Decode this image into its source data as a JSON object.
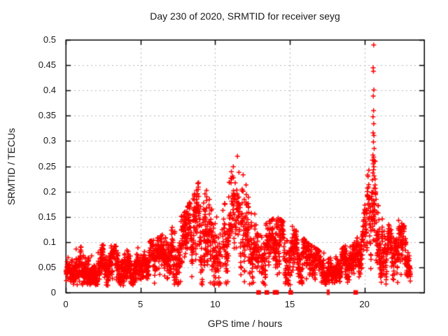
{
  "title": "Day 230 of 2020, SRMTID for receiver seyg",
  "chart_data": {
    "type": "scatter",
    "title": "Day 230 of 2020, SRMTID for receiver seyg",
    "xlabel": "GPS time / hours",
    "ylabel": "SRMTID / TECUs",
    "xlim": [
      0,
      24
    ],
    "ylim": [
      0,
      0.5
    ],
    "xtick_labels": [
      "0",
      "5",
      "10",
      "15",
      "20"
    ],
    "xtick_values": [
      0,
      5,
      10,
      15,
      20
    ],
    "ytick_labels": [
      "0",
      "0.05",
      "0.1",
      "0.15",
      "0.2",
      "0.25",
      "0.3",
      "0.35",
      "0.4",
      "0.45",
      "0.5"
    ],
    "ytick_values": [
      0,
      0.05,
      0.1,
      0.15,
      0.2,
      0.25,
      0.3,
      0.35,
      0.4,
      0.45,
      0.5
    ],
    "grid": "dotted-major",
    "legend": false,
    "marker": {
      "shape": "plus",
      "size": 7,
      "color": "#ff0000"
    },
    "colors": {
      "marker": "#ff0000",
      "grid": "#b4b4b4",
      "axis": "#000000",
      "text": "#1a1a1a",
      "background": "#ffffff"
    },
    "sampling": {
      "seed": 230,
      "epoch_step_hours": 0.025,
      "start_hour": 0.02,
      "end_hour": 23.08,
      "min_points_per_epoch": 2,
      "max_points_per_epoch": 5,
      "floor_value": 0.014,
      "noise_ar": 0.5
    },
    "ripple": {
      "amp1": 0.2,
      "period1": 0.8,
      "phase1": 1.2,
      "amp2": 0.12,
      "period2": 2.7,
      "phase2": 0.5
    },
    "envelope_keypoints": [
      [
        0.0,
        0.042,
        0.013
      ],
      [
        0.5,
        0.04,
        0.012
      ],
      [
        1.0,
        0.05,
        0.016
      ],
      [
        1.5,
        0.046,
        0.014
      ],
      [
        2.0,
        0.051,
        0.015
      ],
      [
        2.5,
        0.056,
        0.016
      ],
      [
        3.0,
        0.052,
        0.015
      ],
      [
        3.5,
        0.057,
        0.016
      ],
      [
        4.0,
        0.05,
        0.014
      ],
      [
        4.5,
        0.047,
        0.013
      ],
      [
        5.0,
        0.052,
        0.015
      ],
      [
        5.5,
        0.058,
        0.016
      ],
      [
        6.0,
        0.066,
        0.018
      ],
      [
        6.5,
        0.072,
        0.02
      ],
      [
        7.0,
        0.078,
        0.022
      ],
      [
        7.5,
        0.088,
        0.026
      ],
      [
        8.0,
        0.1,
        0.03
      ],
      [
        8.5,
        0.112,
        0.033
      ],
      [
        9.0,
        0.128,
        0.04
      ],
      [
        9.4,
        0.132,
        0.038
      ],
      [
        9.8,
        0.11,
        0.036
      ],
      [
        10.2,
        0.095,
        0.038
      ],
      [
        10.6,
        0.1,
        0.038
      ],
      [
        11.0,
        0.128,
        0.042
      ],
      [
        11.4,
        0.155,
        0.045
      ],
      [
        11.8,
        0.138,
        0.04
      ],
      [
        12.2,
        0.108,
        0.036
      ],
      [
        12.6,
        0.085,
        0.03
      ],
      [
        13.0,
        0.074,
        0.028
      ],
      [
        13.4,
        0.079,
        0.028
      ],
      [
        13.8,
        0.084,
        0.028
      ],
      [
        14.2,
        0.089,
        0.028
      ],
      [
        14.6,
        0.09,
        0.026
      ],
      [
        15.0,
        0.089,
        0.025
      ],
      [
        15.4,
        0.081,
        0.023
      ],
      [
        15.8,
        0.071,
        0.02
      ],
      [
        16.2,
        0.061,
        0.017
      ],
      [
        16.6,
        0.056,
        0.015
      ],
      [
        17.0,
        0.049,
        0.013
      ],
      [
        17.4,
        0.045,
        0.012
      ],
      [
        17.8,
        0.045,
        0.012
      ],
      [
        18.2,
        0.048,
        0.013
      ],
      [
        18.6,
        0.052,
        0.014
      ],
      [
        19.0,
        0.056,
        0.015
      ],
      [
        19.4,
        0.061,
        0.017
      ],
      [
        19.8,
        0.078,
        0.024
      ],
      [
        20.1,
        0.115,
        0.038
      ],
      [
        20.4,
        0.165,
        0.045
      ],
      [
        20.6,
        0.185,
        0.045
      ],
      [
        20.8,
        0.148,
        0.042
      ],
      [
        21.1,
        0.108,
        0.032
      ],
      [
        21.5,
        0.085,
        0.026
      ],
      [
        21.9,
        0.075,
        0.024
      ],
      [
        22.2,
        0.084,
        0.026
      ],
      [
        22.5,
        0.075,
        0.024
      ],
      [
        22.8,
        0.066,
        0.022
      ],
      [
        23.08,
        0.046,
        0.016
      ]
    ],
    "cap_keypoints": [
      [
        0,
        0.085
      ],
      [
        2,
        0.095
      ],
      [
        4,
        0.09
      ],
      [
        5,
        0.095
      ],
      [
        6,
        0.105
      ],
      [
        7,
        0.125
      ],
      [
        8,
        0.16
      ],
      [
        8.8,
        0.21
      ],
      [
        9.1,
        0.25
      ],
      [
        9.5,
        0.21
      ],
      [
        10,
        0.165
      ],
      [
        10.6,
        0.17
      ],
      [
        11.1,
        0.24
      ],
      [
        11.5,
        0.27
      ],
      [
        11.9,
        0.23
      ],
      [
        12.3,
        0.19
      ],
      [
        12.7,
        0.15
      ],
      [
        13.1,
        0.13
      ],
      [
        13.6,
        0.14
      ],
      [
        14.1,
        0.15
      ],
      [
        14.6,
        0.14
      ],
      [
        15.1,
        0.135
      ],
      [
        15.6,
        0.12
      ],
      [
        16.1,
        0.1
      ],
      [
        16.6,
        0.09
      ],
      [
        17.1,
        0.08
      ],
      [
        17.6,
        0.075
      ],
      [
        18.1,
        0.08
      ],
      [
        18.6,
        0.09
      ],
      [
        19.1,
        0.1
      ],
      [
        19.6,
        0.11
      ],
      [
        19.9,
        0.135
      ],
      [
        20.2,
        0.23
      ],
      [
        20.45,
        0.262
      ],
      [
        20.7,
        0.262
      ],
      [
        20.9,
        0.24
      ],
      [
        21.2,
        0.175
      ],
      [
        21.6,
        0.135
      ],
      [
        22.0,
        0.13
      ],
      [
        22.3,
        0.15
      ],
      [
        22.6,
        0.13
      ],
      [
        22.9,
        0.14
      ],
      [
        23.08,
        0.1
      ]
    ],
    "sparse_regions": [
      [
        10.25,
        10.5,
        0.5
      ],
      [
        12.85,
        13.05,
        0.5
      ]
    ],
    "outlier_points": [
      [
        20.62,
        0.49
      ],
      [
        20.58,
        0.445
      ],
      [
        20.6,
        0.438
      ],
      [
        20.63,
        0.401
      ],
      [
        20.59,
        0.389
      ],
      [
        20.61,
        0.36
      ],
      [
        20.57,
        0.348
      ],
      [
        20.62,
        0.334
      ],
      [
        20.58,
        0.316
      ],
      [
        20.63,
        0.311
      ],
      [
        20.6,
        0.298
      ],
      [
        20.65,
        0.285
      ],
      [
        20.57,
        0.272
      ],
      [
        20.62,
        0.268
      ],
      [
        20.66,
        0.261
      ],
      [
        20.59,
        0.255
      ],
      [
        20.63,
        0.249
      ],
      [
        20.61,
        0.243
      ],
      [
        20.56,
        0.237
      ],
      [
        20.64,
        0.231
      ]
    ],
    "zero_marker_hours": [
      12.9,
      13.45,
      14.0,
      14.1,
      15.05,
      19.4
    ],
    "zero_tick_hours": [
      17.52,
      17.62
    ]
  }
}
